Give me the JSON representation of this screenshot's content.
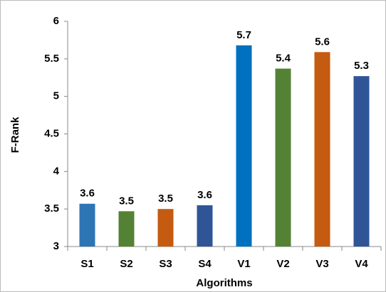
{
  "chart_data": {
    "type": "bar",
    "x_label": "Algorithms",
    "y_label": "F-Rank",
    "categories": [
      "S1",
      "S2",
      "S3",
      "S4",
      "V1",
      "V2",
      "V3",
      "V4"
    ],
    "values": [
      3.57,
      3.47,
      3.5,
      3.55,
      5.68,
      5.37,
      5.59,
      5.27
    ],
    "value_labels": [
      "3.6",
      "3.5",
      "3.5",
      "3.6",
      "5.7",
      "5.4",
      "5.6",
      "5.3"
    ],
    "colors": [
      "#2e75b6",
      "#548235",
      "#c55a11",
      "#2f5597",
      "#0070c0",
      "#548235",
      "#c55a11",
      "#2f5597"
    ],
    "ylim": [
      3,
      6
    ],
    "yticks": [
      3,
      3.5,
      4,
      4.5,
      5,
      5.5,
      6
    ],
    "grid": false
  }
}
